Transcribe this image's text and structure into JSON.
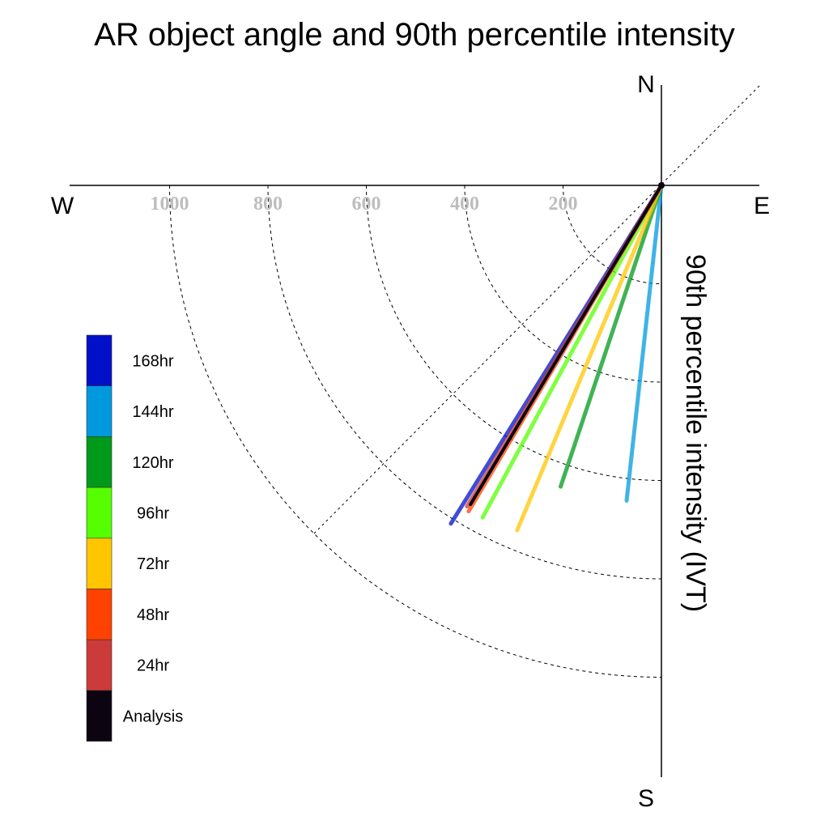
{
  "chart_data": {
    "type": "polar-vector",
    "title": "AR object angle and 90th percentile intensity",
    "ylabel": "90th percentile intensity (IVT)",
    "compass": {
      "north": "N",
      "south": "S",
      "west": "W",
      "east": "E"
    },
    "radial_ticks": [
      200,
      400,
      600,
      800,
      1000
    ],
    "radial_tick_labels": [
      "200",
      "400",
      "600",
      "800",
      "1000"
    ],
    "rlim": [
      0,
      1200
    ],
    "grid": true,
    "legend_position": "left",
    "series": [
      {
        "name": "168hr",
        "color": "#0010c8",
        "angle_deg_cw_from_south": 31.9,
        "intensity": 810
      },
      {
        "name": "144hr",
        "color": "#0099de",
        "angle_deg_cw_from_south": 6.3,
        "intensity": 645
      },
      {
        "name": "120hr",
        "color": "#009a1a",
        "angle_deg_cw_from_south": 18.5,
        "intensity": 646
      },
      {
        "name": "96hr",
        "color": "#55ff00",
        "angle_deg_cw_from_south": 28.3,
        "intensity": 767
      },
      {
        "name": "72hr",
        "color": "#ffc600",
        "angle_deg_cw_from_south": 22.7,
        "intensity": 760
      },
      {
        "name": "48hr",
        "color": "#ff4200",
        "angle_deg_cw_from_south": 30.6,
        "intensity": 770
      },
      {
        "name": "24hr",
        "color": "#cc3a3a",
        "angle_deg_cw_from_south": 31.2,
        "intensity": 763
      },
      {
        "name": "Analysis",
        "color": "#0c0410",
        "angle_deg_cw_from_south": 30.9,
        "intensity": 756
      }
    ]
  }
}
